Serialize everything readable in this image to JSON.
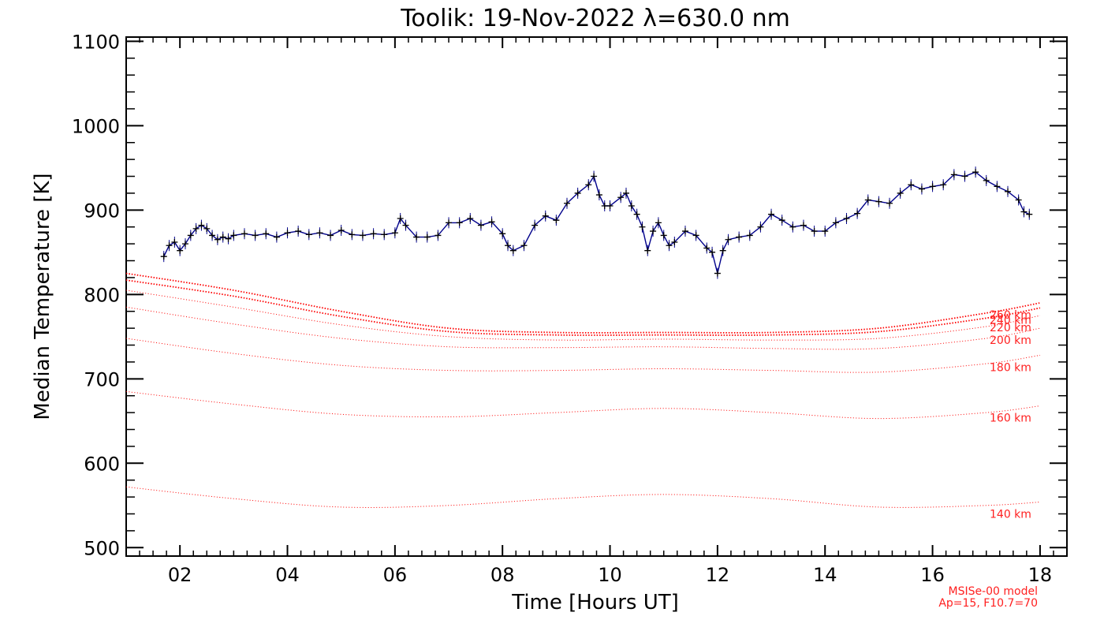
{
  "chart_data": {
    "type": "line",
    "title": "Toolik: 19-Nov-2022 λ=630.0 nm",
    "xlabel": "Time [Hours UT]",
    "ylabel": "Median Temperature [K]",
    "xlim": [
      1.0,
      18.5
    ],
    "ylim": [
      490,
      1105
    ],
    "x_ticks": [
      2,
      4,
      6,
      8,
      10,
      12,
      14,
      16,
      18
    ],
    "x_tick_labels": [
      "02",
      "04",
      "06",
      "08",
      "10",
      "12",
      "14",
      "16",
      "18"
    ],
    "y_ticks": [
      500,
      600,
      700,
      800,
      900,
      1000,
      1100
    ],
    "y_tick_labels": [
      "500",
      "600",
      "700",
      "800",
      "900",
      "1000",
      "1100"
    ],
    "grid": false,
    "measured": {
      "color": "#00008b",
      "marker_color": "#000000",
      "x": [
        1.7,
        1.8,
        1.9,
        2.0,
        2.1,
        2.2,
        2.3,
        2.4,
        2.5,
        2.6,
        2.7,
        2.8,
        2.9,
        3.0,
        3.2,
        3.4,
        3.6,
        3.8,
        4.0,
        4.2,
        4.4,
        4.6,
        4.8,
        5.0,
        5.2,
        5.4,
        5.6,
        5.8,
        6.0,
        6.1,
        6.2,
        6.4,
        6.6,
        6.8,
        7.0,
        7.2,
        7.4,
        7.6,
        7.8,
        8.0,
        8.1,
        8.2,
        8.4,
        8.6,
        8.8,
        9.0,
        9.2,
        9.4,
        9.6,
        9.7,
        9.8,
        9.9,
        10.0,
        10.2,
        10.3,
        10.4,
        10.5,
        10.6,
        10.7,
        10.8,
        10.9,
        11.0,
        11.1,
        11.2,
        11.4,
        11.6,
        11.8,
        11.9,
        12.0,
        12.1,
        12.2,
        12.4,
        12.6,
        12.8,
        13.0,
        13.2,
        13.4,
        13.6,
        13.8,
        14.0,
        14.2,
        14.4,
        14.6,
        14.8,
        15.0,
        15.2,
        15.4,
        15.6,
        15.8,
        16.0,
        16.2,
        16.4,
        16.6,
        16.8,
        17.0,
        17.2,
        17.4,
        17.6,
        17.7,
        17.8
      ],
      "y": [
        845,
        858,
        862,
        852,
        860,
        870,
        878,
        882,
        878,
        870,
        865,
        868,
        866,
        870,
        872,
        870,
        872,
        868,
        873,
        875,
        871,
        873,
        870,
        876,
        871,
        870,
        872,
        871,
        873,
        890,
        882,
        868,
        868,
        870,
        885,
        885,
        890,
        882,
        886,
        872,
        858,
        852,
        858,
        882,
        893,
        888,
        908,
        920,
        930,
        940,
        918,
        905,
        905,
        915,
        920,
        905,
        895,
        880,
        852,
        875,
        885,
        870,
        858,
        862,
        875,
        870,
        855,
        850,
        825,
        852,
        865,
        868,
        870,
        880,
        895,
        888,
        880,
        882,
        875,
        875,
        885,
        890,
        896,
        912,
        910,
        908,
        920,
        930,
        925,
        928,
        930,
        942,
        940,
        945,
        935,
        928,
        922,
        912,
        898,
        895
      ]
    },
    "model_series": [
      {
        "name": "140 km",
        "x": [
          1.0,
          3.0,
          5.0,
          7.0,
          9.0,
          11.0,
          13.0,
          15.0,
          17.0,
          18.0
        ],
        "y": [
          572,
          558,
          548,
          550,
          558,
          563,
          558,
          548,
          550,
          554
        ]
      },
      {
        "name": "160 km",
        "x": [
          1.0,
          3.0,
          5.0,
          7.0,
          9.0,
          11.0,
          13.0,
          15.0,
          17.0,
          18.0
        ],
        "y": [
          685,
          670,
          658,
          655,
          660,
          665,
          660,
          653,
          660,
          668
        ]
      },
      {
        "name": "180 km",
        "x": [
          1.0,
          3.0,
          5.0,
          7.0,
          9.0,
          11.0,
          13.0,
          15.0,
          17.0,
          18.0
        ],
        "y": [
          748,
          730,
          716,
          710,
          710,
          712,
          710,
          708,
          718,
          728
        ]
      },
      {
        "name": "200 km",
        "x": [
          1.0,
          3.0,
          5.0,
          7.0,
          9.0,
          11.0,
          13.0,
          15.0,
          17.0,
          18.0
        ],
        "y": [
          785,
          765,
          748,
          738,
          737,
          738,
          736,
          736,
          748,
          760
        ]
      },
      {
        "name": "220 km",
        "x": [
          1.0,
          3.0,
          5.0,
          7.0,
          9.0,
          11.0,
          13.0,
          15.0,
          17.0,
          18.0
        ],
        "y": [
          805,
          785,
          764,
          750,
          746,
          747,
          746,
          748,
          762,
          775
        ]
      },
      {
        "name": "240 km",
        "x": [
          1.0,
          3.0,
          5.0,
          7.0,
          9.0,
          11.0,
          13.0,
          15.0,
          17.0,
          18.0
        ],
        "y": [
          817,
          798,
          774,
          756,
          752,
          752,
          752,
          756,
          772,
          784
        ]
      },
      {
        "name": "260 km",
        "x": [
          1.0,
          3.0,
          5.0,
          7.0,
          9.0,
          11.0,
          13.0,
          15.0,
          17.0,
          18.0
        ],
        "y": [
          825,
          805,
          780,
          760,
          755,
          755,
          755,
          760,
          778,
          790
        ]
      }
    ],
    "model_color": "#ff0000",
    "model_note": [
      "MSISe-00 model",
      "Ap=15, F10.7=70"
    ]
  }
}
